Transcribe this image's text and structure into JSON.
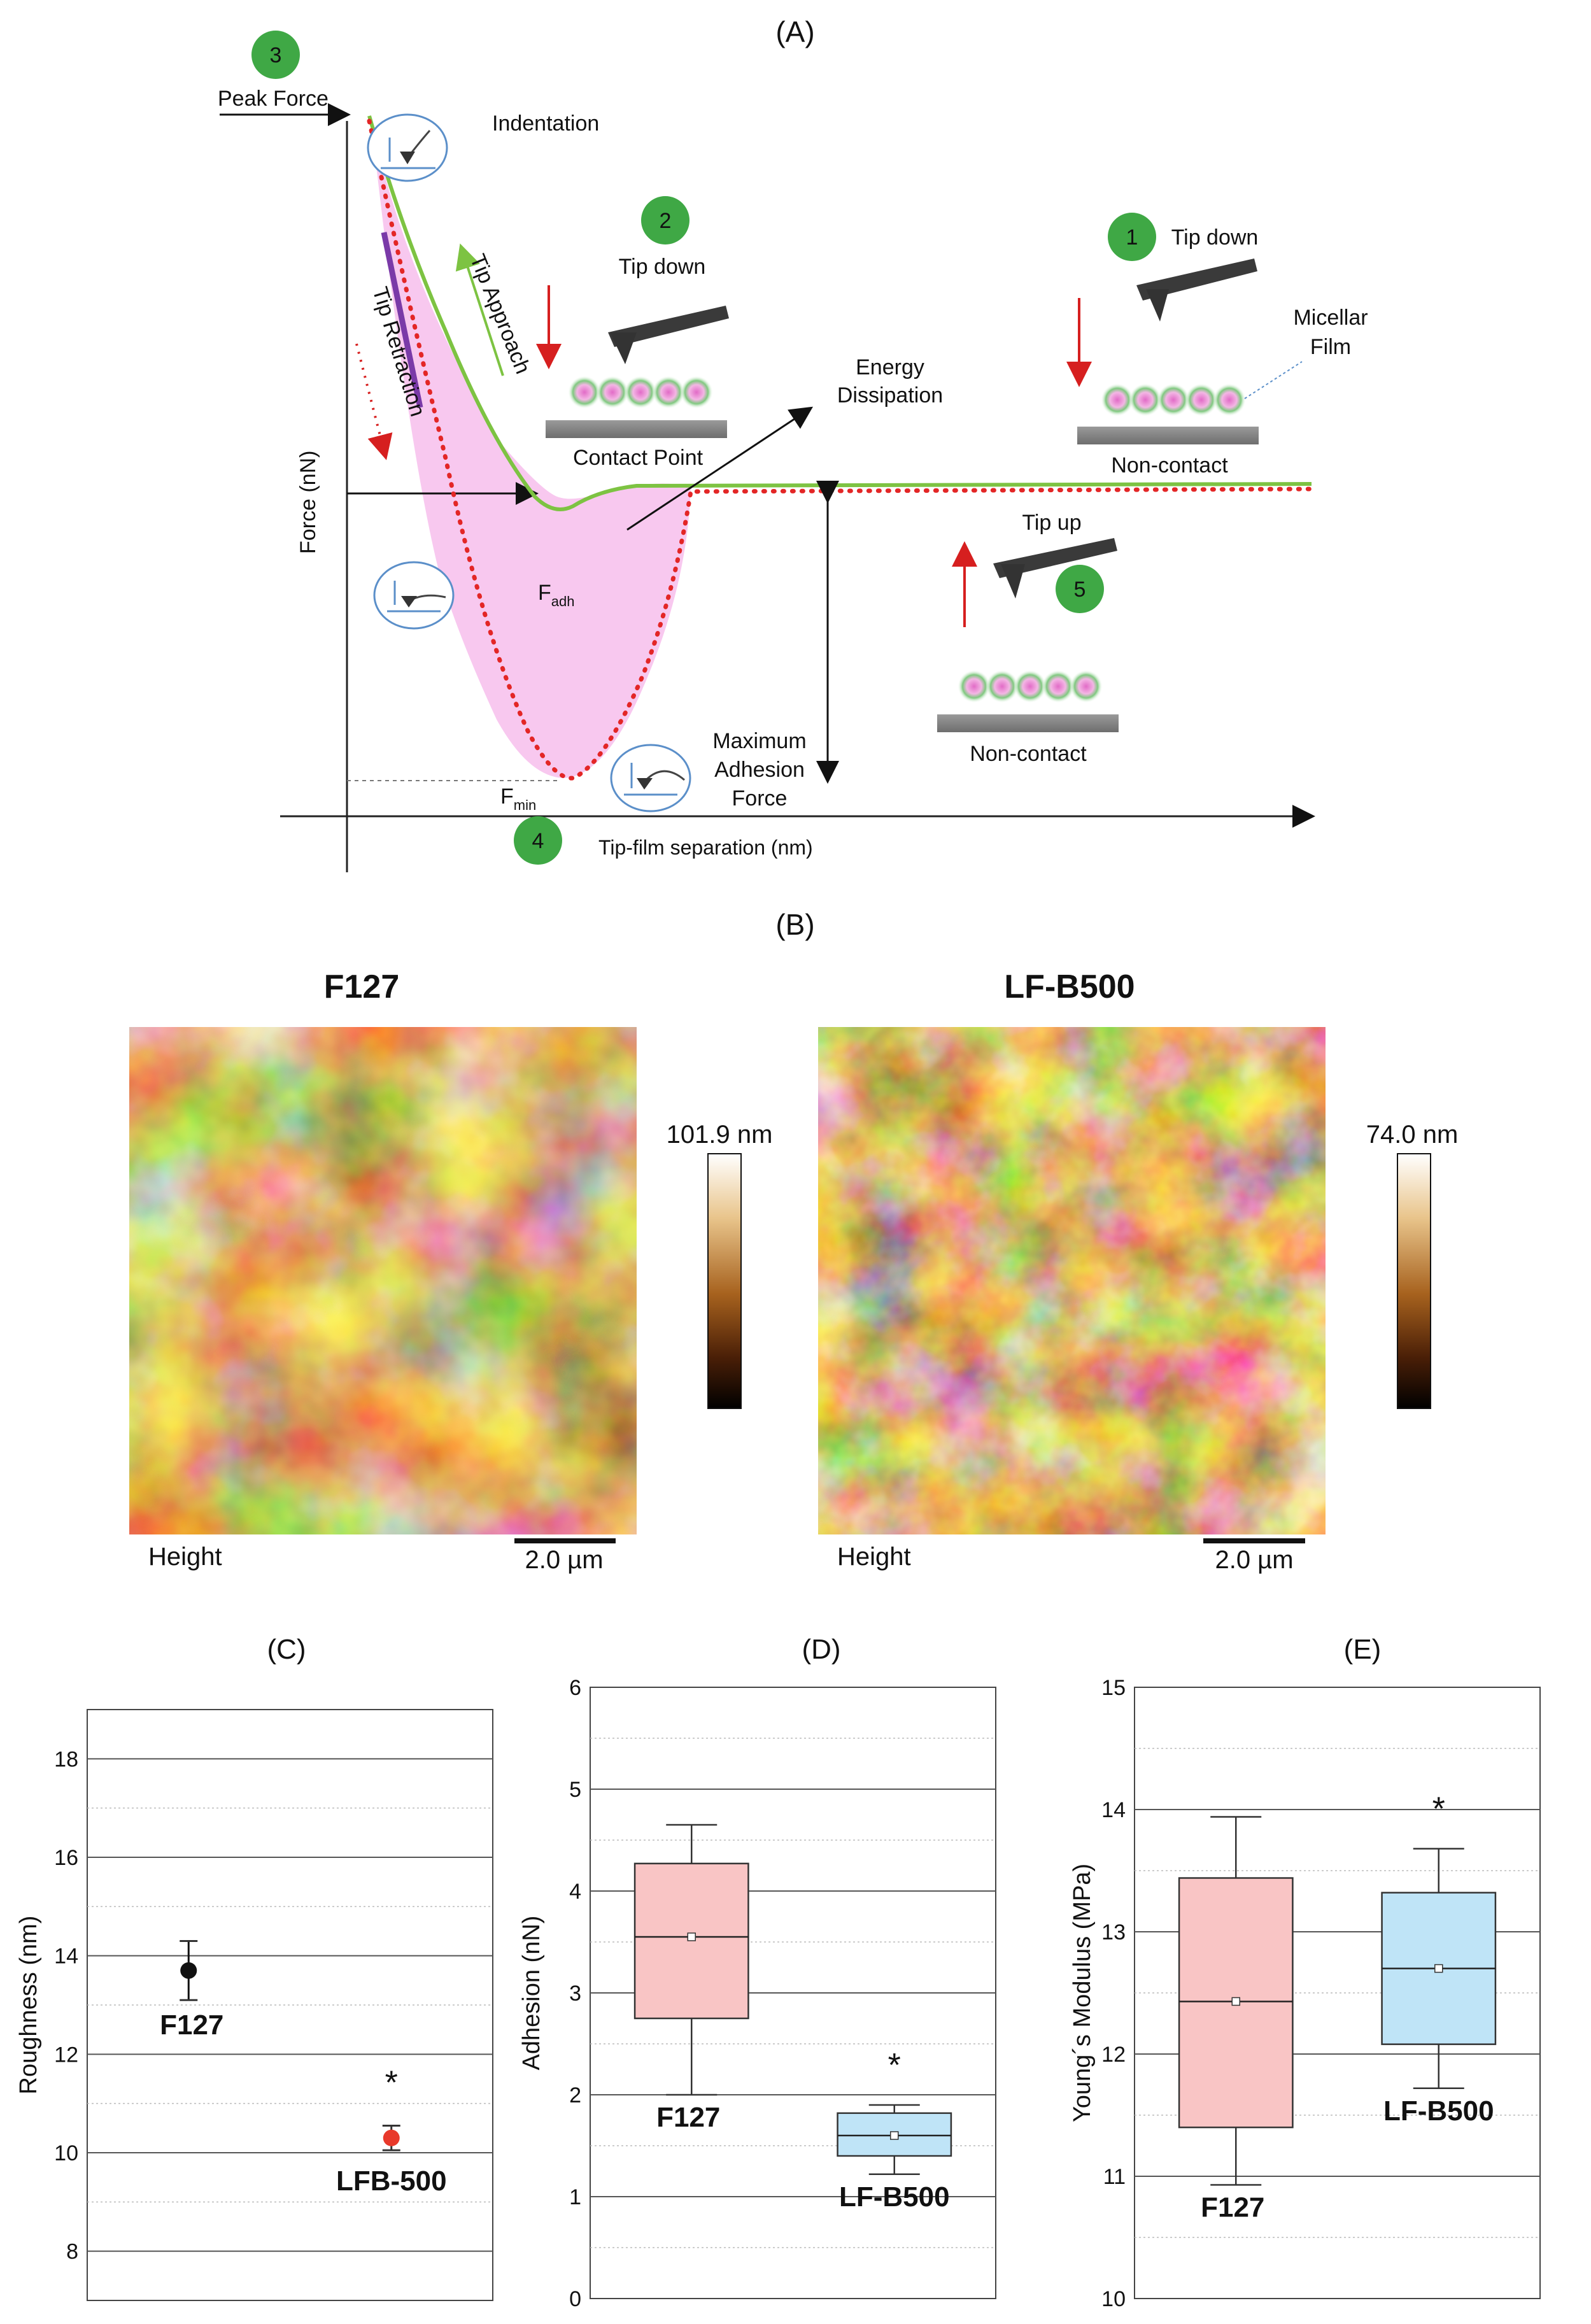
{
  "panel_a": {
    "label": "(A)",
    "y_axis_label": "Force (nN)",
    "x_axis_label": "Tip-film separation (nm)",
    "peak_force": "Peak Force",
    "indentation": "Indentation",
    "tip_approach": "Tip Approach",
    "tip_retraction": "Tip Retraction",
    "tip_down_1": "Tip down",
    "tip_down_2": "Tip down",
    "tip_up": "Tip up",
    "contact_point": "Contact Point",
    "non_contact_1": "Non-contact",
    "non_contact_2": "Non-contact",
    "micellar_film_1": "Micellar",
    "micellar_film_2": "Film",
    "energy_1": "Energy",
    "energy_2": "Dissipation",
    "fadh_main": "F",
    "fadh_sub": "adh",
    "fmin_main": "F",
    "fmin_sub": "min",
    "max_adh_1": "Maximum",
    "max_adh_2": "Adhesion",
    "max_adh_3": "Force",
    "steps": [
      "1",
      "2",
      "3",
      "4",
      "5"
    ],
    "colors": {
      "approach": "#7dc342",
      "retract": "#e32626",
      "dissipation": "#f8c8ef",
      "step": "#3fa845",
      "bar": "#7a3aa8"
    }
  },
  "panel_b": {
    "label": "(B)",
    "left_title": "F127",
    "right_title": "LF-B500",
    "left_scale": "101.9 nm",
    "right_scale": "74.0 nm",
    "height_label_left": "Height",
    "height_label_right": "Height",
    "scalebar_left": "2.0 µm",
    "scalebar_right": "2.0 µm"
  },
  "chart_data": [
    {
      "panel": "(C)",
      "type": "scatter",
      "ylabel": "Roughness (nm)",
      "ylim": [
        7,
        19
      ],
      "yticks": [
        8,
        10,
        12,
        14,
        16,
        18
      ],
      "points": [
        {
          "label": "F127",
          "y": 13.7,
          "err": 0.6,
          "color": "#111111"
        },
        {
          "label": "LFB-500",
          "y": 10.3,
          "err": 0.25,
          "color": "#e8392b"
        }
      ],
      "significance": "*"
    },
    {
      "panel": "(D)",
      "type": "box",
      "ylabel": "Adhesion (nN)",
      "ylim": [
        0,
        6
      ],
      "yticks": [
        0,
        1,
        2,
        3,
        4,
        5,
        6
      ],
      "boxes": [
        {
          "label": "F127",
          "min": 2.0,
          "q1": 2.75,
          "median": 3.55,
          "mean": 3.55,
          "q3": 4.27,
          "max": 4.65,
          "color": "#f9c5c5"
        },
        {
          "label": "LF-B500",
          "min": 1.22,
          "q1": 1.4,
          "median": 1.6,
          "mean": 1.6,
          "q3": 1.82,
          "max": 1.9,
          "color": "#bfe4f7"
        }
      ],
      "significance": "*"
    },
    {
      "panel": "(E)",
      "type": "box",
      "ylabel": "Young´s Modulus (MPa)",
      "ylim": [
        10,
        15
      ],
      "yticks": [
        10,
        11,
        12,
        13,
        14,
        15
      ],
      "boxes": [
        {
          "label": "F127",
          "min": 10.93,
          "q1": 11.4,
          "median": 12.43,
          "mean": 12.43,
          "q3": 13.44,
          "max": 13.94,
          "color": "#f9c5c5"
        },
        {
          "label": "LF-B500",
          "min": 11.72,
          "q1": 12.08,
          "median": 12.7,
          "mean": 12.7,
          "q3": 13.32,
          "max": 13.68,
          "color": "#bfe4f7"
        }
      ],
      "significance": "*"
    }
  ]
}
